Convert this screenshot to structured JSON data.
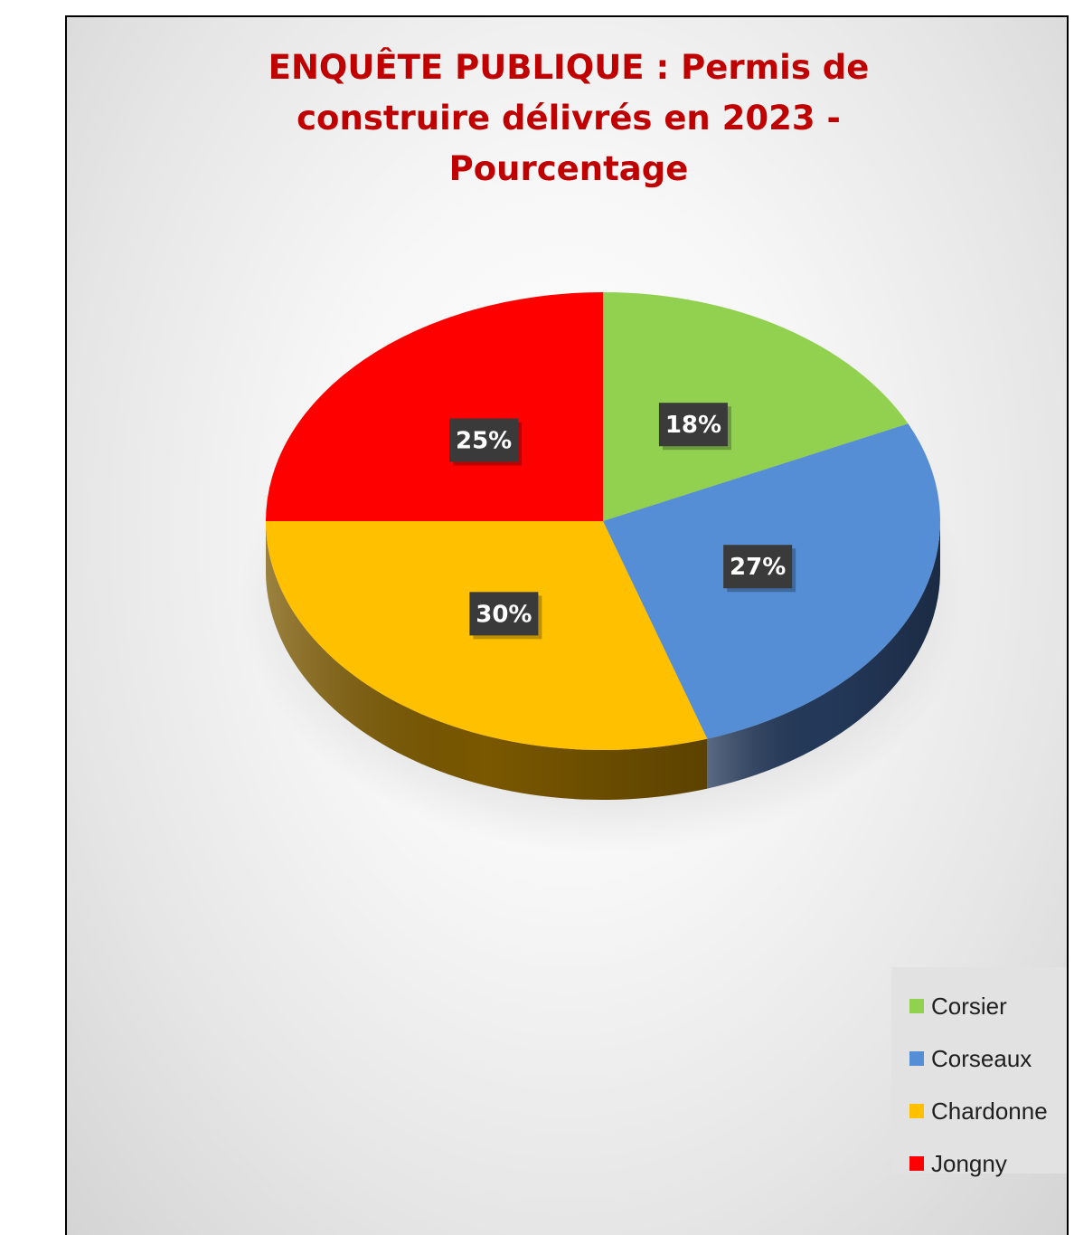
{
  "chart_data": {
    "type": "pie",
    "title": "ENQUÊTE PUBLIQUE : Permis de construire délivrés en 2023 - Pourcentage",
    "title_lines": [
      "ENQUÊTE PUBLIQUE : Permis de",
      "construire délivrés en 2023 -",
      "Pourcentage"
    ],
    "style": "3d",
    "legend_position": "bottom-right",
    "slices": [
      {
        "name": "Corsier",
        "value": 18,
        "label": "18%",
        "color": "#92d050",
        "side_color": "#5c8a2e"
      },
      {
        "name": "Corseaux",
        "value": 27,
        "label": "27%",
        "color": "#558ed5",
        "side_color": "#24395a"
      },
      {
        "name": "Chardonne",
        "value": 30,
        "label": "30%",
        "color": "#ffc000",
        "side_color": "#7a5800"
      },
      {
        "name": "Jongny",
        "value": 25,
        "label": "25%",
        "color": "#ff0000",
        "side_color": "#8a0000"
      }
    ]
  }
}
